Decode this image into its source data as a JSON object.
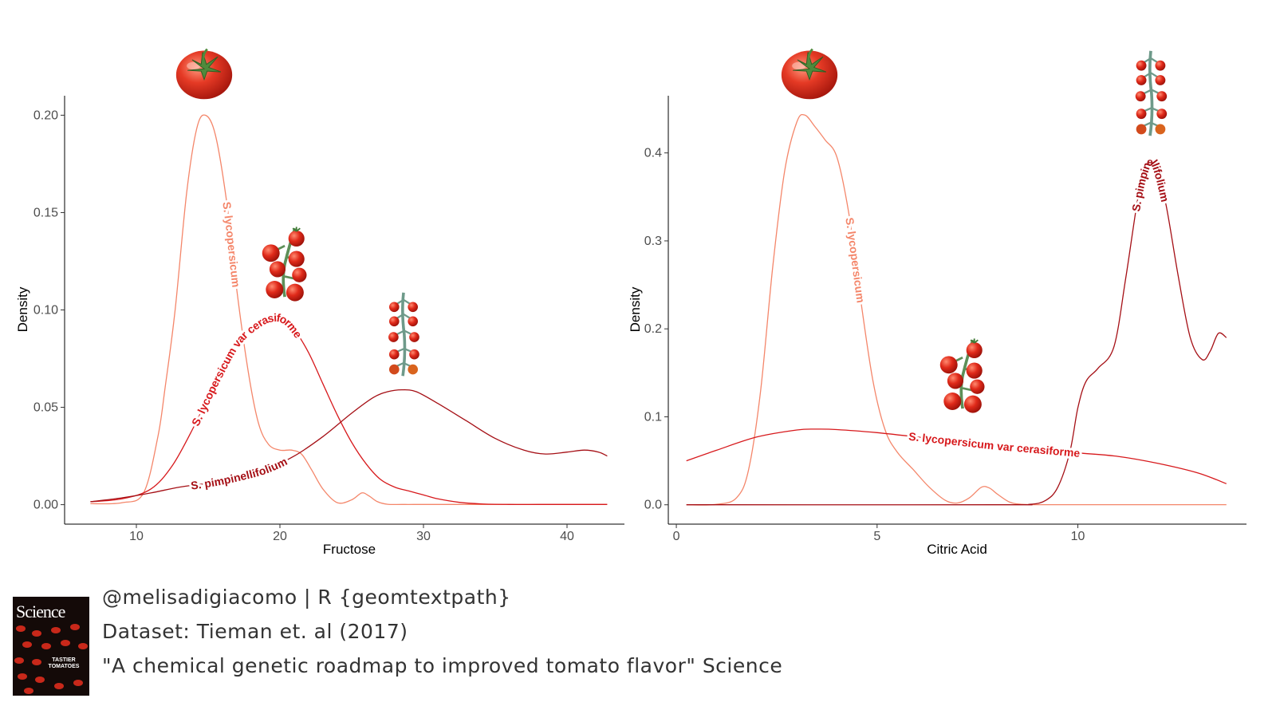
{
  "chart_data": [
    {
      "type": "line",
      "subtype": "density",
      "xlabel": "Fructose",
      "ylabel": "Density",
      "xlim": [
        5,
        44
      ],
      "ylim": [
        -0.01,
        0.21
      ],
      "xticks": [
        10,
        20,
        30,
        40
      ],
      "xtick_labels": [
        "10",
        "20",
        "30",
        "40"
      ],
      "yticks": [
        0,
        0.05,
        0.1,
        0.15,
        0.2
      ],
      "ytick_labels": [
        "0.00",
        "0.05",
        "0.10",
        "0.15",
        "0.20"
      ],
      "grid": false,
      "series": [
        {
          "name": "S. lycopersicum",
          "color": "#f4866a",
          "label_at": 0.5,
          "x": [
            6.8,
            9,
            10.5,
            11.5,
            12,
            12.7,
            13.5,
            14.2,
            14.8,
            15.5,
            16.3,
            17,
            17.8,
            18.5,
            19.2,
            20,
            20.8,
            21.5,
            22.2,
            23,
            24,
            25,
            25.7,
            26.2,
            26.8,
            27.5,
            28.5,
            30,
            33,
            36,
            40,
            42.8
          ],
          "y": [
            0.0005,
            0.001,
            0.006,
            0.035,
            0.06,
            0.1,
            0.16,
            0.193,
            0.2,
            0.19,
            0.155,
            0.11,
            0.068,
            0.042,
            0.031,
            0.028,
            0.028,
            0.026,
            0.018,
            0.008,
            0.001,
            0.0025,
            0.006,
            0.0045,
            0.0015,
            0.0002,
            0.0001,
            0.0001,
            0.0001,
            0.0001,
            0.0001,
            0.0001
          ]
        },
        {
          "name": "S. lycopersicum var cerasiforme",
          "color": "#d7191c",
          "label_at": 0.32,
          "x": [
            6.8,
            9,
            11,
            12.5,
            14,
            15.5,
            17,
            18.5,
            19.5,
            20.3,
            21,
            22,
            23,
            24,
            25,
            26,
            27,
            28,
            29,
            30,
            31,
            32.5,
            34,
            36,
            38,
            40,
            42.8
          ],
          "y": [
            0.0015,
            0.003,
            0.008,
            0.02,
            0.04,
            0.063,
            0.083,
            0.093,
            0.096,
            0.095,
            0.09,
            0.078,
            0.062,
            0.046,
            0.032,
            0.021,
            0.013,
            0.009,
            0.007,
            0.005,
            0.003,
            0.0012,
            0.0004,
            0.0001,
            0.0001,
            0.0001,
            0.0001
          ]
        },
        {
          "name": "S. pimpinellifolium",
          "color": "#a50f15",
          "label_at": 0.27,
          "x": [
            6.8,
            9,
            11,
            13,
            15,
            17,
            19,
            21,
            23,
            25,
            26.5,
            27.5,
            28.5,
            29.5,
            31,
            33,
            35,
            37,
            38.5,
            40,
            41.2,
            42.2,
            42.8
          ],
          "y": [
            0.0015,
            0.0035,
            0.006,
            0.009,
            0.011,
            0.014,
            0.018,
            0.025,
            0.035,
            0.047,
            0.055,
            0.058,
            0.059,
            0.058,
            0.052,
            0.043,
            0.034,
            0.028,
            0.026,
            0.027,
            0.028,
            0.027,
            0.025
          ]
        }
      ]
    },
    {
      "type": "line",
      "subtype": "density",
      "xlabel": "Citric Acid",
      "ylabel": "Density",
      "xlim": [
        -0.2,
        14.2
      ],
      "ylim": [
        -0.022,
        0.465
      ],
      "xticks": [
        0,
        5,
        10
      ],
      "xtick_labels": [
        "0",
        "5",
        "10"
      ],
      "yticks": [
        0,
        0.1,
        0.2,
        0.3,
        0.4
      ],
      "ytick_labels": [
        "0.0",
        "0.1",
        "0.2",
        "0.3",
        "0.4"
      ],
      "grid": false,
      "series": [
        {
          "name": "S. lycopersicum",
          "color": "#f4866a",
          "label_at": 0.52,
          "x": [
            0.25,
            1,
            1.5,
            1.8,
            2.1,
            2.4,
            2.7,
            3.0,
            3.2,
            3.45,
            3.7,
            4.0,
            4.3,
            4.6,
            4.9,
            5.2,
            5.5,
            5.9,
            6.3,
            6.7,
            7.0,
            7.3,
            7.6,
            7.8,
            8.0,
            8.3,
            8.6,
            9,
            10,
            12,
            13.7
          ],
          "y": [
            0,
            0.0005,
            0.008,
            0.04,
            0.13,
            0.27,
            0.38,
            0.435,
            0.443,
            0.43,
            0.415,
            0.395,
            0.33,
            0.23,
            0.14,
            0.085,
            0.06,
            0.04,
            0.02,
            0.005,
            0.002,
            0.008,
            0.02,
            0.019,
            0.012,
            0.003,
            0.0005,
            0.0001,
            0.0001,
            0.0001,
            0.0001
          ]
        },
        {
          "name": "S. lycopersicum var cerasiforme",
          "color": "#d7191c",
          "label_at": 0.57,
          "x": [
            0.25,
            1,
            2,
            3,
            3.5,
            4,
            5,
            6,
            7,
            8,
            9,
            10,
            11,
            12,
            13,
            13.7
          ],
          "y": [
            0.05,
            0.062,
            0.077,
            0.085,
            0.086,
            0.0855,
            0.082,
            0.077,
            0.072,
            0.067,
            0.063,
            0.059,
            0.055,
            0.047,
            0.036,
            0.024
          ]
        },
        {
          "name": "S. pimpinellifolium",
          "color": "#a50f15",
          "label_at": 0.74,
          "x": [
            0.25,
            8,
            8.8,
            9.2,
            9.5,
            9.8,
            10.0,
            10.2,
            10.5,
            10.9,
            11.2,
            11.5,
            11.7,
            11.8,
            11.95,
            12.2,
            12.5,
            12.8,
            13.1,
            13.3,
            13.5,
            13.7
          ],
          "y": [
            0,
            0,
            0.0005,
            0.005,
            0.02,
            0.06,
            0.11,
            0.14,
            0.155,
            0.18,
            0.26,
            0.35,
            0.385,
            0.39,
            0.385,
            0.34,
            0.26,
            0.19,
            0.165,
            0.175,
            0.195,
            0.19
          ]
        }
      ]
    }
  ],
  "caption": {
    "credit": "@melisadigiacomo | R {geomtextpath}",
    "dataset": "Dataset: Tieman et. al (2017)",
    "paper": "\"A chemical genetic roadmap to improved tomato flavor\" Science"
  },
  "cover": {
    "title": "Science",
    "subtitle": "TASTIER TOMATOES"
  }
}
